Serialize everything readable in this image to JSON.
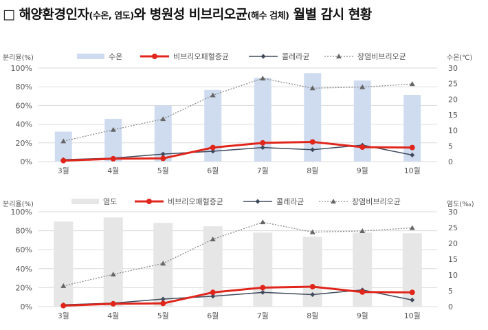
{
  "title": {
    "box": "□",
    "part1": "해양환경인자",
    "part2": "(수온, 염도)",
    "part3": "와 병원성 비브리오균",
    "part4": "(해수 검체)",
    "part5": " 월별 감시 현황"
  },
  "colors": {
    "temperature_bar": "#cfdcef",
    "salinity_bar": "#e6e6e6",
    "vibrio_vulnificus": "#e0251b",
    "cholera": "#3f4a5c",
    "parahaemolyticus": "#8a8a8a",
    "grid": "#d9d9d9"
  },
  "chart_data": [
    {
      "type": "bar+line",
      "ylabel": "분리율(%)",
      "y2label": "수온(℃)",
      "ylim": [
        0,
        100
      ],
      "y2lim": [
        0,
        30
      ],
      "yticks": [
        "0%",
        "20%",
        "40%",
        "60%",
        "80%",
        "100%"
      ],
      "y2ticks": [
        "0",
        "5",
        "10",
        "15",
        "20",
        "25",
        "30"
      ],
      "categories": [
        "3월",
        "4월",
        "5월",
        "6월",
        "7월",
        "8월",
        "9월",
        "10월"
      ],
      "grid": true,
      "legend": "top",
      "bars": {
        "name": "수온",
        "axis": "right",
        "values": [
          9.6,
          13.7,
          18.0,
          23.0,
          26.9,
          28.4,
          26.0,
          21.4
        ]
      },
      "series": [
        {
          "name": "비브리오패혈증균",
          "style": "thick-red-circle",
          "values": [
            1,
            3,
            3.4,
            15,
            20,
            21,
            15.4,
            15
          ]
        },
        {
          "name": "콜레라균",
          "style": "dark-diamond",
          "values": [
            2,
            3.7,
            8,
            11,
            15,
            12.7,
            17.6,
            7
          ]
        },
        {
          "name": "장염비브리오균",
          "style": "dotted-triangle",
          "values": [
            21.8,
            34,
            45.5,
            71,
            89,
            78.5,
            79.7,
            83
          ]
        }
      ]
    },
    {
      "type": "bar+line",
      "ylabel": "분리율(%)",
      "y2label": "염도(‰)",
      "ylim": [
        0,
        100
      ],
      "y2lim": [
        0,
        30
      ],
      "yticks": [
        "0%",
        "20%",
        "40%",
        "60%",
        "80%",
        "100%"
      ],
      "y2ticks": [
        "0",
        "5",
        "10",
        "15",
        "20",
        "25",
        "30"
      ],
      "categories": [
        "3월",
        "4월",
        "5월",
        "6월",
        "7월",
        "8월",
        "9월",
        "10월"
      ],
      "grid": true,
      "legend": "top",
      "bars": {
        "name": "염도",
        "axis": "right",
        "values": [
          26.9,
          28.2,
          26.5,
          25.4,
          23.4,
          22.1,
          23.4,
          23.2
        ]
      },
      "series": [
        {
          "name": "비브리오패혈증균",
          "style": "thick-red-circle",
          "values": [
            1,
            3,
            3.4,
            15,
            20,
            21,
            15.4,
            15
          ]
        },
        {
          "name": "콜레라균",
          "style": "dark-diamond",
          "values": [
            2,
            3.7,
            8,
            11,
            15,
            12.7,
            17.6,
            7
          ]
        },
        {
          "name": "장염비브리오균",
          "style": "dotted-triangle",
          "values": [
            21.8,
            34,
            45.5,
            71,
            89,
            78.5,
            79.7,
            83
          ]
        }
      ]
    }
  ]
}
